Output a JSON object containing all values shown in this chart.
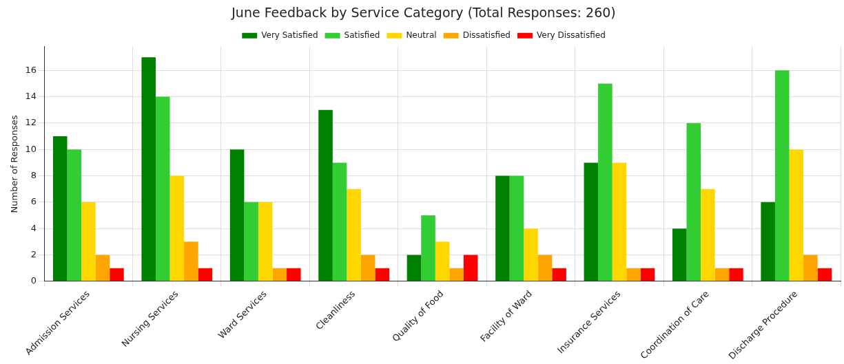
{
  "chart_data": {
    "type": "bar",
    "title": "June Feedback by Service Category (Total Responses: 260)",
    "ylabel": "Number of Responses",
    "categories": [
      "Admission Services",
      "Nursing Services",
      "Ward Services",
      "Cleanliness",
      "Quality of Food",
      "Facility of Ward",
      "Insurance Services",
      "Coordination of Care",
      "Discharge Procedure"
    ],
    "series": [
      {
        "name": "Very Satisfied",
        "color": "#008000",
        "values": [
          11,
          17,
          10,
          13,
          2,
          8,
          9,
          4,
          6
        ]
      },
      {
        "name": "Satisfied",
        "color": "#32cd32",
        "values": [
          10,
          14,
          6,
          9,
          5,
          8,
          15,
          12,
          16
        ]
      },
      {
        "name": "Neutral",
        "color": "#ffd700",
        "values": [
          6,
          8,
          6,
          7,
          3,
          4,
          9,
          7,
          10
        ]
      },
      {
        "name": "Dissatisfied",
        "color": "#ffa500",
        "values": [
          2,
          3,
          1,
          2,
          1,
          2,
          1,
          1,
          2
        ]
      },
      {
        "name": "Very Dissatisfied",
        "color": "#ff0000",
        "values": [
          1,
          1,
          1,
          1,
          2,
          1,
          1,
          1,
          1
        ]
      }
    ],
    "ylim": [
      0,
      17.8
    ],
    "yticks": [
      0,
      2,
      4,
      6,
      8,
      10,
      12,
      14,
      16
    ],
    "grid": true,
    "legend": "top"
  }
}
